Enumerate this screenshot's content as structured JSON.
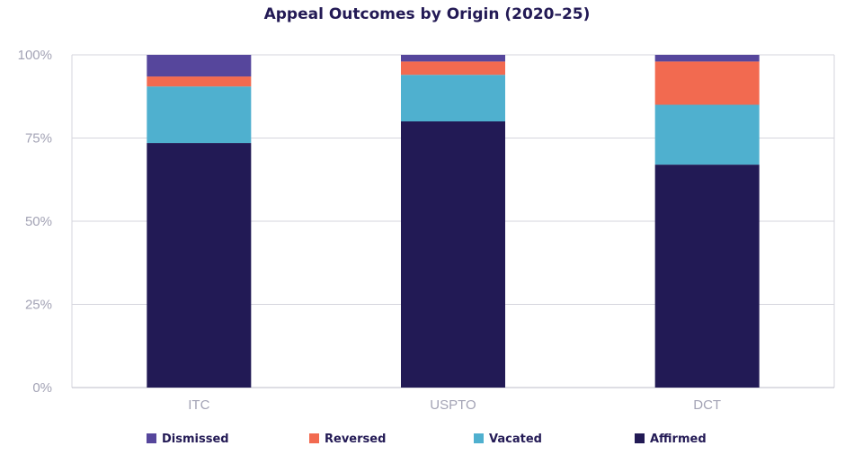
{
  "chart_data": {
    "type": "bar",
    "stacked": true,
    "title": "Appeal Outcomes by Origin (2020–25)",
    "categories": [
      "ITC",
      "USPTO",
      "DCT"
    ],
    "yticks": [
      "0%",
      "25%",
      "50%",
      "75%",
      "100%"
    ],
    "ylim": [
      0,
      100
    ],
    "grid": true,
    "legend_position": "bottom",
    "series": [
      {
        "name": "Affirmed",
        "color": "#221a55",
        "values": [
          73.5,
          80,
          67
        ]
      },
      {
        "name": "Vacated",
        "color": "#4fb0cf",
        "values": [
          17,
          14,
          18
        ]
      },
      {
        "name": "Reversed",
        "color": "#f26a50",
        "values": [
          3,
          4,
          13
        ]
      },
      {
        "name": "Dismissed",
        "color": "#56469c",
        "values": [
          6.5,
          2,
          2
        ]
      }
    ],
    "legend_order": [
      "Dismissed",
      "Reversed",
      "Vacated",
      "Affirmed"
    ]
  }
}
